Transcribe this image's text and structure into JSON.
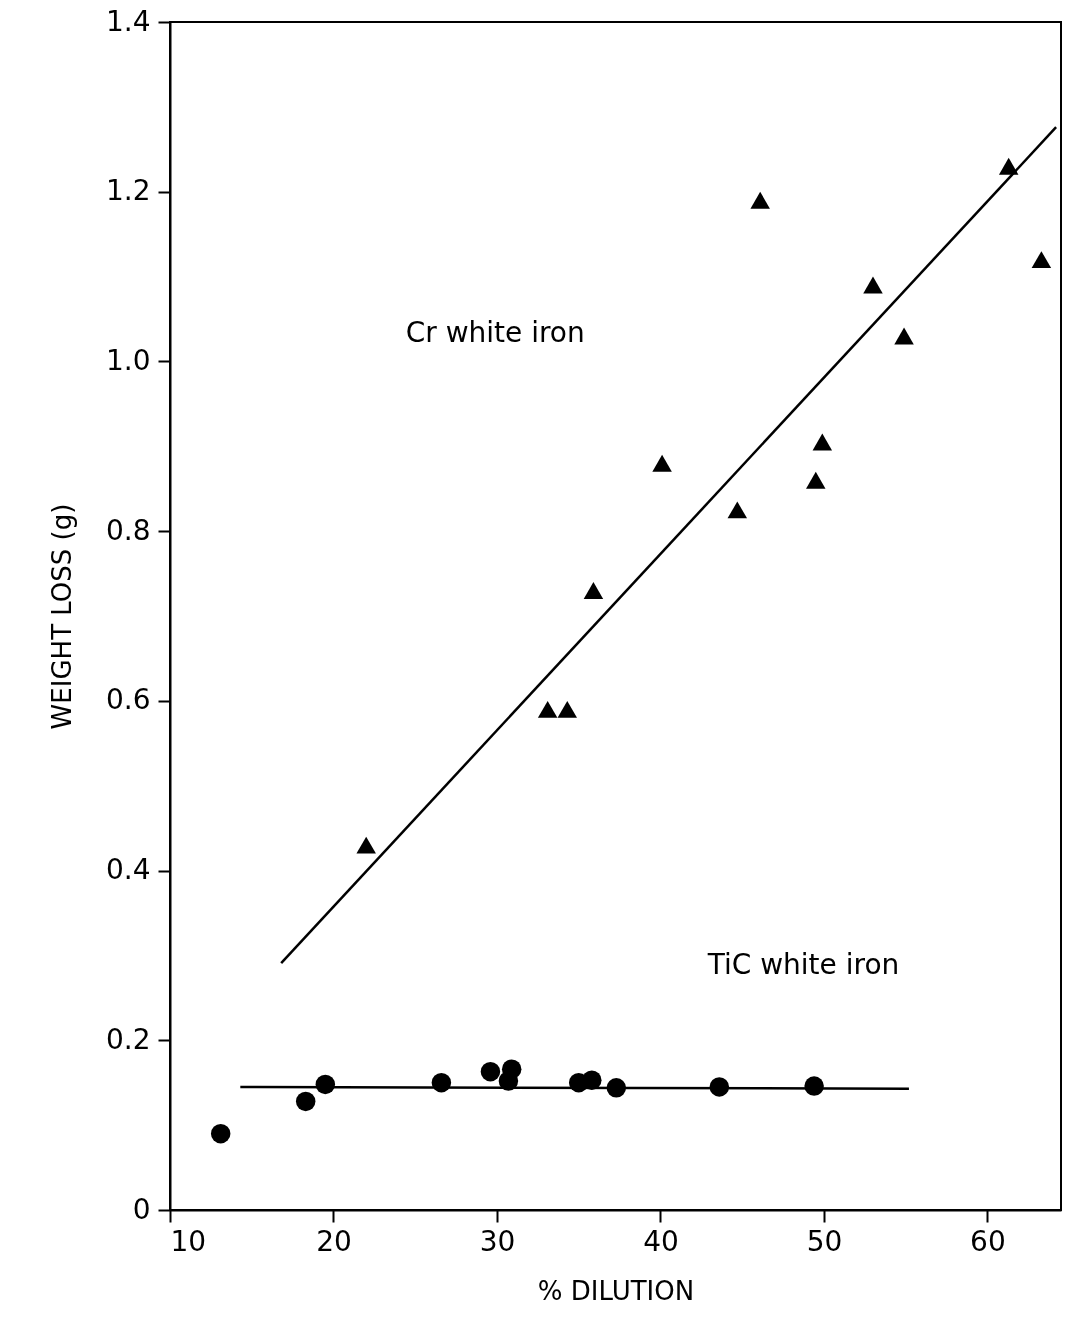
{
  "chart_data": {
    "type": "scatter",
    "xlabel": "% DILUTION",
    "ylabel": "WEIGHT LOSS (g)",
    "xlim": [
      10,
      64.5
    ],
    "ylim": [
      0,
      1.4
    ],
    "xticks": [
      10,
      20,
      30,
      40,
      50,
      60
    ],
    "yticks": [
      0,
      0.2,
      0.4,
      0.6,
      0.8,
      {
        "value": 1,
        "label": "1.0"
      },
      1.2,
      1.4
    ],
    "series": [
      {
        "marker": "triangle",
        "color": "#000000",
        "x": [
          22.0,
          33.1,
          34.3,
          35.9,
          40.1,
          44.7,
          46.1,
          49.5,
          49.9,
          53.0,
          54.9,
          61.3,
          63.3
        ],
        "values": [
          0.43,
          0.59,
          0.59,
          0.73,
          0.88,
          0.825,
          1.19,
          0.86,
          0.905,
          1.09,
          1.03,
          1.23,
          1.12
        ]
      },
      {
        "marker": "circle",
        "color": "#000000",
        "x": [
          13.1,
          18.3,
          19.5,
          26.6,
          29.6,
          30.7,
          30.9,
          35.0,
          35.8,
          37.3,
          43.6,
          49.4
        ],
        "values": [
          0.09,
          0.128,
          0.148,
          0.15,
          0.163,
          0.152,
          0.166,
          0.15,
          0.153,
          0.144,
          0.145,
          0.146
        ]
      },
      {
        "type": "line",
        "line_style": "solid",
        "color": "#000000",
        "x": [
          16.8,
          64.2
        ],
        "values": [
          0.291,
          1.276
        ]
      },
      {
        "type": "line",
        "line_style": "solid",
        "color": "#000000",
        "x": [
          14.3,
          55.2
        ],
        "values": [
          0.145,
          0.143
        ]
      }
    ],
    "annotations": [
      "Cr  white iron",
      "TiC white iron"
    ]
  }
}
